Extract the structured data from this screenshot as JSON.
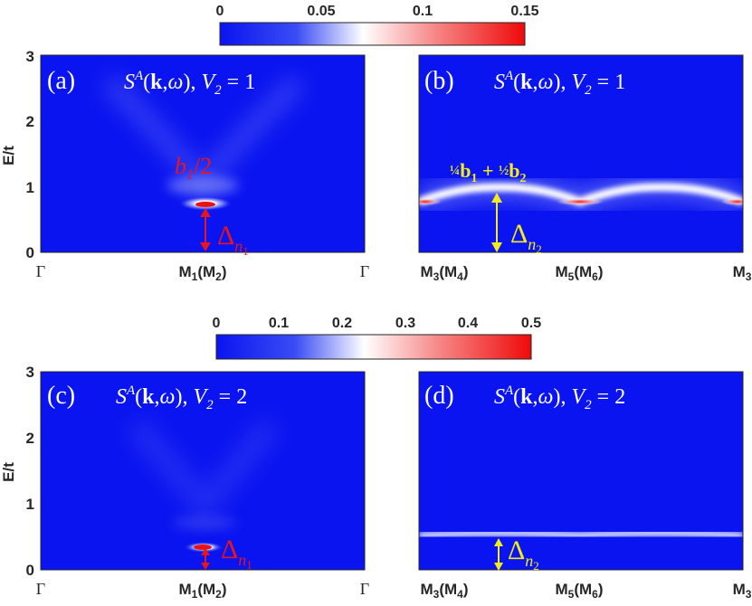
{
  "figure": {
    "colorbars": [
      {
        "ticks": [
          "0",
          "0.05",
          "0.1",
          "0.15"
        ],
        "range": [
          0,
          0.15
        ]
      },
      {
        "ticks": [
          "0",
          "0.1",
          "0.2",
          "0.3",
          "0.4",
          "0.5"
        ],
        "range": [
          0,
          0.5
        ]
      }
    ],
    "ylabel": "E/t",
    "panels": [
      {
        "label": "(a)",
        "title": "S^A(k,ω), V_2 = 1",
        "xticks": [
          "Γ",
          "M1(M2)",
          "Γ"
        ],
        "yticks": [
          "0",
          "1",
          "2",
          "3"
        ],
        "annotations": [
          "b1/2",
          "Δ_n1"
        ]
      },
      {
        "label": "(b)",
        "title": "S^A(k,ω), V_2 = 1",
        "xticks": [
          "M3(M4)",
          "M5(M6)",
          "M3"
        ],
        "annotations": [
          "¼b1 + ½b2",
          "Δ_n2"
        ]
      },
      {
        "label": "(c)",
        "title": "S^A(k,ω), V_2 = 2",
        "xticks": [
          "Γ",
          "M1(M2)",
          "Γ"
        ],
        "yticks": [
          "0",
          "1",
          "2",
          "3"
        ],
        "annotations": [
          "Δ_n1"
        ]
      },
      {
        "label": "(d)",
        "title": "S^A(k,ω), V_2 = 2",
        "xticks": [
          "M3(M4)",
          "M5(M6)",
          "M3"
        ],
        "annotations": [
          "Δ_n2"
        ]
      }
    ],
    "colors": {
      "low": "#0a14f0",
      "mid": "#ffffff",
      "high": "#ee0a0a",
      "annot_red": "#e8141e",
      "annot_yellow": "#f2ec18"
    }
  },
  "chart_data": [
    {
      "type": "heatmap",
      "panel": "a",
      "xlabel": "",
      "ylabel": "E/t",
      "ylim": [
        0,
        3
      ],
      "clim": [
        0,
        0.15
      ],
      "ridge": [
        {
          "x": 0.5,
          "E": 0.72,
          "peak": 0.15
        },
        {
          "x": 0.5,
          "E": 1.0,
          "peak": 0.05
        }
      ],
      "gap": {
        "name": "Δ_n1",
        "value": 0.72
      }
    },
    {
      "type": "heatmap",
      "panel": "b",
      "xlabel": "",
      "ylabel": "",
      "ylim": [
        0,
        3
      ],
      "clim": [
        0,
        0.15
      ],
      "band": {
        "x": [
          0,
          0.25,
          0.5,
          0.75,
          1.0
        ],
        "E": [
          0.75,
          1.0,
          0.75,
          1.0,
          0.75
        ]
      },
      "gap": {
        "name": "Δ_n2",
        "value": 1.0
      }
    },
    {
      "type": "heatmap",
      "panel": "c",
      "xlabel": "",
      "ylabel": "E/t",
      "ylim": [
        0,
        3
      ],
      "clim": [
        0,
        0.5
      ],
      "ridge": [
        {
          "x": 0.5,
          "E": 0.35,
          "peak": 0.5
        }
      ],
      "gap": {
        "name": "Δ_n1",
        "value": 0.35
      }
    },
    {
      "type": "heatmap",
      "panel": "d",
      "xlabel": "",
      "ylabel": "",
      "ylim": [
        0,
        3
      ],
      "clim": [
        0,
        0.5
      ],
      "band": {
        "x": [
          0,
          0.25,
          0.5,
          0.75,
          1.0
        ],
        "E": [
          0.55,
          0.5,
          0.5,
          0.55,
          0.5
        ]
      },
      "gap": {
        "name": "Δ_n2",
        "value": 0.5
      }
    }
  ]
}
